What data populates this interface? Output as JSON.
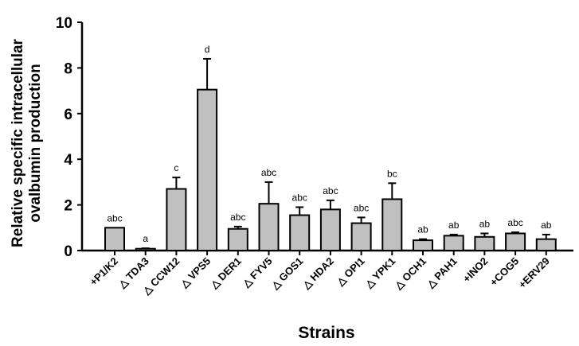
{
  "chart_data": {
    "type": "bar",
    "title": "",
    "xlabel": "Strains",
    "ylabel_lines": [
      "Relative specific intracellular",
      "ovalbumin production"
    ],
    "ylim": [
      0,
      10
    ],
    "yticks": [
      0,
      2,
      4,
      6,
      8,
      10
    ],
    "bar_color": "#c0c0c0",
    "categories": [
      "+P1/K2",
      "△ TDA3",
      "△ CCW12",
      "△ VPS5",
      "△ DER1",
      "△ FYV5",
      "△ GOS1",
      "△ HDA2",
      "△ OPI1",
      "△ YPK1",
      "△ OCH1",
      "△ PAH1",
      "+INO2",
      "+COG5",
      "+ERV29"
    ],
    "values": [
      1.0,
      0.08,
      2.7,
      7.05,
      0.95,
      2.05,
      1.55,
      1.8,
      1.2,
      2.25,
      0.45,
      0.65,
      0.6,
      0.75,
      0.5
    ],
    "error": [
      0.0,
      0.02,
      0.5,
      1.35,
      0.1,
      0.95,
      0.35,
      0.4,
      0.25,
      0.7,
      0.05,
      0.05,
      0.15,
      0.05,
      0.2
    ],
    "significance": [
      "abc",
      "a",
      "c",
      "d",
      "abc",
      "abc",
      "abc",
      "abc",
      "abc",
      "bc",
      "ab",
      "ab",
      "ab",
      "abc",
      "ab"
    ]
  }
}
